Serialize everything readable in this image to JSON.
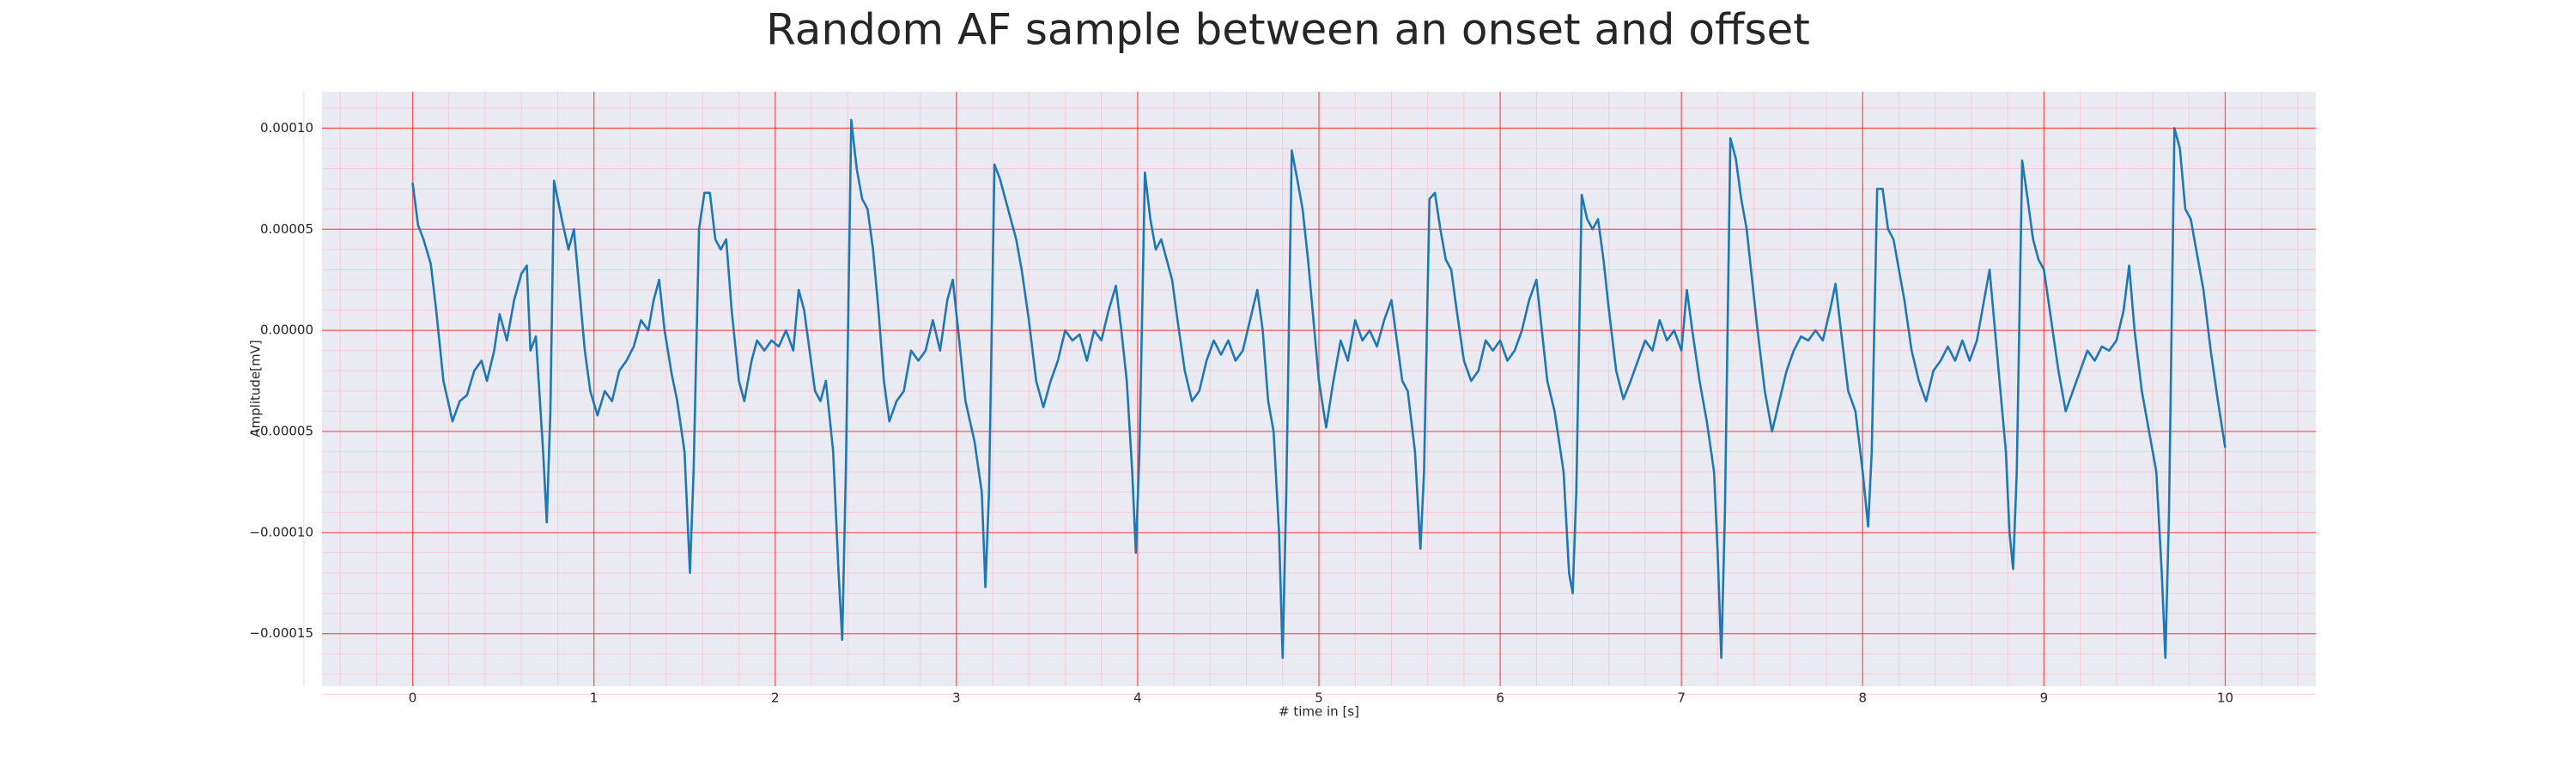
{
  "chart_data": {
    "type": "line",
    "title": "Random AF sample between an onset and offset",
    "xlabel": "# time in [s]",
    "ylabel": "Amplitude[mV]",
    "color": "#1f77b4",
    "grid": true,
    "minor_grid": true,
    "xlim": [
      -0.5,
      10.5
    ],
    "ylim": [
      -0.000176,
      0.000118
    ],
    "xticks": [
      0,
      1,
      2,
      3,
      4,
      5,
      6,
      7,
      8,
      9,
      10
    ],
    "yticks": [
      {
        "value": -0.00015,
        "label": "−0.00015"
      },
      {
        "value": -0.0001,
        "label": "−0.00010"
      },
      {
        "value": -5e-05,
        "label": "−0.00005"
      },
      {
        "value": 0,
        "label": "0.00000"
      },
      {
        "value": 5e-05,
        "label": "0.00005"
      },
      {
        "value": 0.0001,
        "label": "0.00010"
      }
    ],
    "x": [
      0.0,
      0.03,
      0.06,
      0.1,
      0.13,
      0.17,
      0.22,
      0.26,
      0.3,
      0.34,
      0.38,
      0.41,
      0.45,
      0.48,
      0.52,
      0.56,
      0.6,
      0.63,
      0.65,
      0.68,
      0.72,
      0.74,
      0.76,
      0.78,
      0.8,
      0.83,
      0.86,
      0.89,
      0.92,
      0.95,
      0.98,
      1.02,
      1.06,
      1.1,
      1.14,
      1.18,
      1.22,
      1.26,
      1.3,
      1.33,
      1.36,
      1.39,
      1.43,
      1.46,
      1.5,
      1.53,
      1.55,
      1.58,
      1.61,
      1.64,
      1.67,
      1.7,
      1.73,
      1.76,
      1.8,
      1.83,
      1.87,
      1.9,
      1.94,
      1.98,
      2.02,
      2.06,
      2.1,
      2.13,
      2.16,
      2.19,
      2.22,
      2.25,
      2.28,
      2.32,
      2.35,
      2.37,
      2.39,
      2.42,
      2.45,
      2.48,
      2.51,
      2.54,
      2.57,
      2.6,
      2.63,
      2.67,
      2.71,
      2.75,
      2.79,
      2.83,
      2.87,
      2.91,
      2.95,
      2.98,
      3.01,
      3.05,
      3.1,
      3.14,
      3.16,
      3.18,
      3.21,
      3.24,
      3.27,
      3.3,
      3.33,
      3.36,
      3.4,
      3.44,
      3.48,
      3.52,
      3.56,
      3.6,
      3.64,
      3.68,
      3.72,
      3.76,
      3.8,
      3.84,
      3.88,
      3.91,
      3.94,
      3.97,
      3.99,
      4.01,
      4.04,
      4.07,
      4.1,
      4.13,
      4.16,
      4.19,
      4.22,
      4.26,
      4.3,
      4.34,
      4.38,
      4.42,
      4.46,
      4.5,
      4.54,
      4.58,
      4.62,
      4.66,
      4.69,
      4.72,
      4.75,
      4.78,
      4.8,
      4.82,
      4.85,
      4.88,
      4.91,
      4.94,
      4.97,
      5.0,
      5.04,
      5.08,
      5.12,
      5.16,
      5.2,
      5.24,
      5.28,
      5.32,
      5.36,
      5.4,
      5.43,
      5.46,
      5.49,
      5.53,
      5.56,
      5.58,
      5.61,
      5.64,
      5.67,
      5.7,
      5.73,
      5.76,
      5.8,
      5.84,
      5.88,
      5.92,
      5.96,
      6.0,
      6.04,
      6.08,
      6.12,
      6.16,
      6.2,
      6.23,
      6.26,
      6.3,
      6.35,
      6.38,
      6.4,
      6.42,
      6.45,
      6.48,
      6.51,
      6.54,
      6.57,
      6.6,
      6.64,
      6.68,
      6.72,
      6.76,
      6.8,
      6.84,
      6.88,
      6.92,
      6.96,
      7.0,
      7.03,
      7.06,
      7.1,
      7.14,
      7.18,
      7.2,
      7.22,
      7.24,
      7.27,
      7.3,
      7.33,
      7.36,
      7.39,
      7.42,
      7.46,
      7.5,
      7.54,
      7.58,
      7.62,
      7.66,
      7.7,
      7.74,
      7.78,
      7.82,
      7.85,
      7.88,
      7.92,
      7.96,
      8.0,
      8.03,
      8.05,
      8.08,
      8.11,
      8.14,
      8.17,
      8.2,
      8.23,
      8.27,
      8.31,
      8.35,
      8.39,
      8.43,
      8.47,
      8.51,
      8.55,
      8.59,
      8.63,
      8.67,
      8.7,
      8.73,
      8.76,
      8.79,
      8.81,
      8.83,
      8.85,
      8.88,
      8.91,
      8.94,
      8.97,
      9.0,
      9.04,
      9.08,
      9.12,
      9.16,
      9.2,
      9.24,
      9.28,
      9.32,
      9.36,
      9.4,
      9.44,
      9.47,
      9.5,
      9.54,
      9.58,
      9.62,
      9.65,
      9.67,
      9.69,
      9.72,
      9.75,
      9.78,
      9.81,
      9.84,
      9.88,
      9.92,
      9.96,
      10.0
    ],
    "values": [
      7.3e-05,
      5.2e-05,
      4.5e-05,
      3.3e-05,
      1e-05,
      -2.5e-05,
      -4.5e-05,
      -3.5e-05,
      -3.2e-05,
      -2e-05,
      -1.5e-05,
      -2.5e-05,
      -1e-05,
      8e-06,
      -5e-06,
      1.5e-05,
      2.8e-05,
      3.2e-05,
      -1e-05,
      -3e-06,
      -6e-05,
      -9.5e-05,
      -4e-05,
      7.4e-05,
      6.5e-05,
      5.2e-05,
      4e-05,
      5e-05,
      2e-05,
      -1e-05,
      -3e-05,
      -4.2e-05,
      -3e-05,
      -3.5e-05,
      -2e-05,
      -1.5e-05,
      -8e-06,
      5e-06,
      0.0,
      1.5e-05,
      2.5e-05,
      0.0,
      -2.2e-05,
      -3.5e-05,
      -6e-05,
      -0.00012,
      -7e-05,
      5e-05,
      6.8e-05,
      6.8e-05,
      4.5e-05,
      4e-05,
      4.5e-05,
      1e-05,
      -2.5e-05,
      -3.5e-05,
      -1.5e-05,
      -5e-06,
      -1e-05,
      -5e-06,
      -8e-06,
      0.0,
      -1e-05,
      2e-05,
      1e-05,
      -1e-05,
      -3e-05,
      -3.5e-05,
      -2.5e-05,
      -6e-05,
      -0.00012,
      -0.000153,
      -7e-05,
      0.000104,
      8e-05,
      6.5e-05,
      6e-05,
      4e-05,
      1e-05,
      -2.5e-05,
      -4.5e-05,
      -3.5e-05,
      -3e-05,
      -1e-05,
      -1.5e-05,
      -1e-05,
      5e-06,
      -1e-05,
      1.5e-05,
      2.5e-05,
      0.0,
      -3.5e-05,
      -5.5e-05,
      -8e-05,
      -0.000127,
      -8e-05,
      8.2e-05,
      7.5e-05,
      6.5e-05,
      5.5e-05,
      4.5e-05,
      3e-05,
      5e-06,
      -2.5e-05,
      -3.8e-05,
      -2.5e-05,
      -1.5e-05,
      0.0,
      -5e-06,
      -2e-06,
      -1.5e-05,
      0.0,
      -5e-06,
      1e-05,
      2.2e-05,
      0.0,
      -2.5e-05,
      -7e-05,
      -0.00011,
      -6e-05,
      7.8e-05,
      5.5e-05,
      4e-05,
      4.5e-05,
      3.5e-05,
      2.5e-05,
      5e-06,
      -2e-05,
      -3.5e-05,
      -3e-05,
      -1.5e-05,
      -5e-06,
      -1.2e-05,
      -5e-06,
      -1.5e-05,
      -1e-05,
      5e-06,
      2e-05,
      0.0,
      -3.5e-05,
      -5e-05,
      -0.0001,
      -0.000162,
      -8e-05,
      8.9e-05,
      7.5e-05,
      6e-05,
      3.5e-05,
      5e-06,
      -2.5e-05,
      -4.8e-05,
      -2.5e-05,
      -5e-06,
      -1.5e-05,
      5e-06,
      -5e-06,
      0.0,
      -8e-06,
      5e-06,
      1.5e-05,
      -5e-06,
      -2.5e-05,
      -3e-05,
      -6e-05,
      -0.000108,
      -7e-05,
      6.5e-05,
      6.8e-05,
      5e-05,
      3.5e-05,
      3e-05,
      1e-05,
      -1.5e-05,
      -2.5e-05,
      -2e-05,
      -5e-06,
      -1e-05,
      -5e-06,
      -1.5e-05,
      -1e-05,
      0.0,
      1.5e-05,
      2.5e-05,
      0.0,
      -2.5e-05,
      -4e-05,
      -7e-05,
      -0.00012,
      -0.00013,
      -8e-05,
      6.7e-05,
      5.5e-05,
      5e-05,
      5.5e-05,
      3.5e-05,
      1e-05,
      -2e-05,
      -3.4e-05,
      -2.5e-05,
      -1.5e-05,
      -5e-06,
      -1e-05,
      5e-06,
      -5e-06,
      0.0,
      -1e-05,
      2e-05,
      0.0,
      -2.5e-05,
      -4.5e-05,
      -7e-05,
      -0.00011,
      -0.000162,
      -9e-05,
      9.5e-05,
      8.5e-05,
      6.5e-05,
      5e-05,
      2.5e-05,
      0.0,
      -3e-05,
      -5e-05,
      -3.5e-05,
      -2e-05,
      -1e-05,
      -3e-06,
      -5e-06,
      0.0,
      -5e-06,
      1e-05,
      2.3e-05,
      0.0,
      -3e-05,
      -4e-05,
      -7e-05,
      -9.7e-05,
      -6e-05,
      7e-05,
      7e-05,
      5e-05,
      4.5e-05,
      3e-05,
      1.5e-05,
      -1e-05,
      -2.5e-05,
      -3.5e-05,
      -2e-05,
      -1.5e-05,
      -8e-06,
      -1.5e-05,
      -5e-06,
      -1.5e-05,
      -5e-06,
      1.5e-05,
      3e-05,
      0.0,
      -3e-05,
      -6e-05,
      -0.0001,
      -0.000118,
      -7e-05,
      8.4e-05,
      6.5e-05,
      4.5e-05,
      3.5e-05,
      3e-05,
      5e-06,
      -2e-05,
      -4e-05,
      -3e-05,
      -2e-05,
      -1e-05,
      -1.5e-05,
      -8e-06,
      -1e-05,
      -5e-06,
      1e-05,
      3.2e-05,
      0.0,
      -3e-05,
      -5e-05,
      -7e-05,
      -0.00012,
      -0.000162,
      -9e-05,
      0.0001,
      9e-05,
      6e-05,
      5.5e-05,
      4e-05,
      2e-05,
      -1e-05,
      -3.5e-05,
      -5.8e-05
    ]
  }
}
